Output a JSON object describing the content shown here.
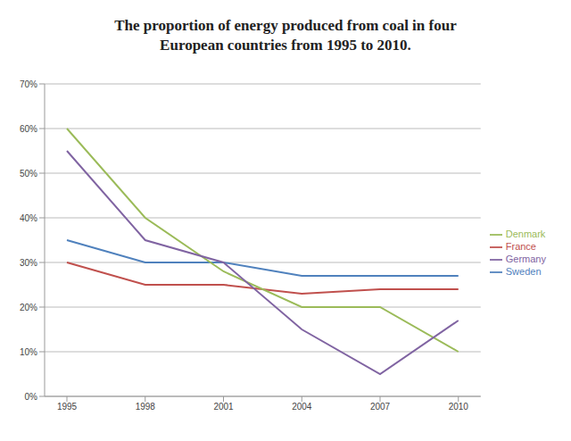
{
  "chart_data": {
    "type": "line",
    "title": "The proportion of energy produced from coal in four European countries from 1995 to 2010.",
    "categories": [
      "1995",
      "1998",
      "2001",
      "2004",
      "2007",
      "2010"
    ],
    "series": [
      {
        "name": "Sweden",
        "color": "#4f81bd",
        "values": [
          35,
          30,
          30,
          27,
          27,
          27
        ]
      },
      {
        "name": "France",
        "color": "#c0504d",
        "values": [
          30,
          25,
          25,
          23,
          24,
          24
        ]
      },
      {
        "name": "Denmark",
        "color": "#9bbb59",
        "values": [
          60,
          40,
          28,
          20,
          20,
          10
        ]
      },
      {
        "name": "Germany",
        "color": "#8064a2",
        "values": [
          55,
          35,
          30,
          15,
          5,
          17
        ]
      }
    ],
    "ylim": [
      0,
      70
    ],
    "yticks": [
      {
        "value": 0,
        "label": "0%"
      },
      {
        "value": 10,
        "label": "10%"
      },
      {
        "value": 20,
        "label": "20%"
      },
      {
        "value": 30,
        "label": "30%"
      },
      {
        "value": 40,
        "label": "40%"
      },
      {
        "value": 50,
        "label": "50%"
      },
      {
        "value": 60,
        "label": "60%"
      },
      {
        "value": 70,
        "label": "70%"
      }
    ],
    "grid": true,
    "legend": "right",
    "marker": "none"
  }
}
